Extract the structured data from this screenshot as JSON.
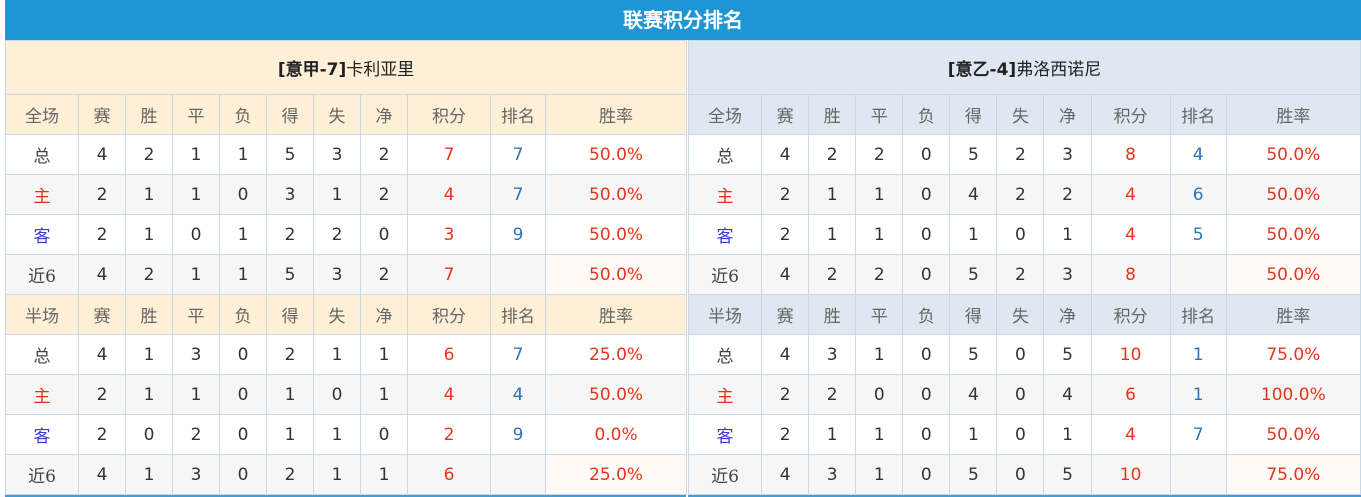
{
  "title": "联赛积分排名",
  "colors": {
    "header_bar": "#1e96d6",
    "points": "#e8341c",
    "rank": "#2f73b8",
    "home": "#e0301e",
    "away": "#3a3ad8"
  },
  "columns": [
    "赛",
    "胜",
    "平",
    "负",
    "得",
    "失",
    "净",
    "积分",
    "排名",
    "胜率"
  ],
  "teams": [
    {
      "tag": "[意甲-7]",
      "name": "卡利亚里",
      "sections": [
        {
          "label": "全场",
          "rows": [
            {
              "type": "总",
              "values": [
                "4",
                "2",
                "1",
                "1",
                "5",
                "3",
                "2",
                "7",
                "7",
                "50.0%"
              ]
            },
            {
              "type": "主",
              "values": [
                "2",
                "1",
                "1",
                "0",
                "3",
                "1",
                "2",
                "4",
                "7",
                "50.0%"
              ]
            },
            {
              "type": "客",
              "values": [
                "2",
                "1",
                "0",
                "1",
                "2",
                "2",
                "0",
                "3",
                "9",
                "50.0%"
              ]
            },
            {
              "type": "近6",
              "values": [
                "4",
                "2",
                "1",
                "1",
                "5",
                "3",
                "2",
                "7",
                "",
                "50.0%"
              ]
            }
          ]
        },
        {
          "label": "半场",
          "rows": [
            {
              "type": "总",
              "values": [
                "4",
                "1",
                "3",
                "0",
                "2",
                "1",
                "1",
                "6",
                "7",
                "25.0%"
              ]
            },
            {
              "type": "主",
              "values": [
                "2",
                "1",
                "1",
                "0",
                "1",
                "0",
                "1",
                "4",
                "4",
                "50.0%"
              ]
            },
            {
              "type": "客",
              "values": [
                "2",
                "0",
                "2",
                "0",
                "1",
                "1",
                "0",
                "2",
                "9",
                "0.0%"
              ]
            },
            {
              "type": "近6",
              "values": [
                "4",
                "1",
                "3",
                "0",
                "2",
                "1",
                "1",
                "6",
                "",
                "25.0%"
              ]
            }
          ]
        }
      ]
    },
    {
      "tag": "[意乙-4]",
      "name": "弗洛西诺尼",
      "sections": [
        {
          "label": "全场",
          "rows": [
            {
              "type": "总",
              "values": [
                "4",
                "2",
                "2",
                "0",
                "5",
                "2",
                "3",
                "8",
                "4",
                "50.0%"
              ]
            },
            {
              "type": "主",
              "values": [
                "2",
                "1",
                "1",
                "0",
                "4",
                "2",
                "2",
                "4",
                "6",
                "50.0%"
              ]
            },
            {
              "type": "客",
              "values": [
                "2",
                "1",
                "1",
                "0",
                "1",
                "0",
                "1",
                "4",
                "5",
                "50.0%"
              ]
            },
            {
              "type": "近6",
              "values": [
                "4",
                "2",
                "2",
                "0",
                "5",
                "2",
                "3",
                "8",
                "",
                "50.0%"
              ]
            }
          ]
        },
        {
          "label": "半场",
          "rows": [
            {
              "type": "总",
              "values": [
                "4",
                "3",
                "1",
                "0",
                "5",
                "0",
                "5",
                "10",
                "1",
                "75.0%"
              ]
            },
            {
              "type": "主",
              "values": [
                "2",
                "2",
                "0",
                "0",
                "4",
                "0",
                "4",
                "6",
                "1",
                "100.0%"
              ]
            },
            {
              "type": "客",
              "values": [
                "2",
                "1",
                "1",
                "0",
                "1",
                "0",
                "1",
                "4",
                "7",
                "50.0%"
              ]
            },
            {
              "type": "近6",
              "values": [
                "4",
                "3",
                "1",
                "0",
                "5",
                "0",
                "5",
                "10",
                "",
                "75.0%"
              ]
            }
          ]
        }
      ]
    }
  ]
}
